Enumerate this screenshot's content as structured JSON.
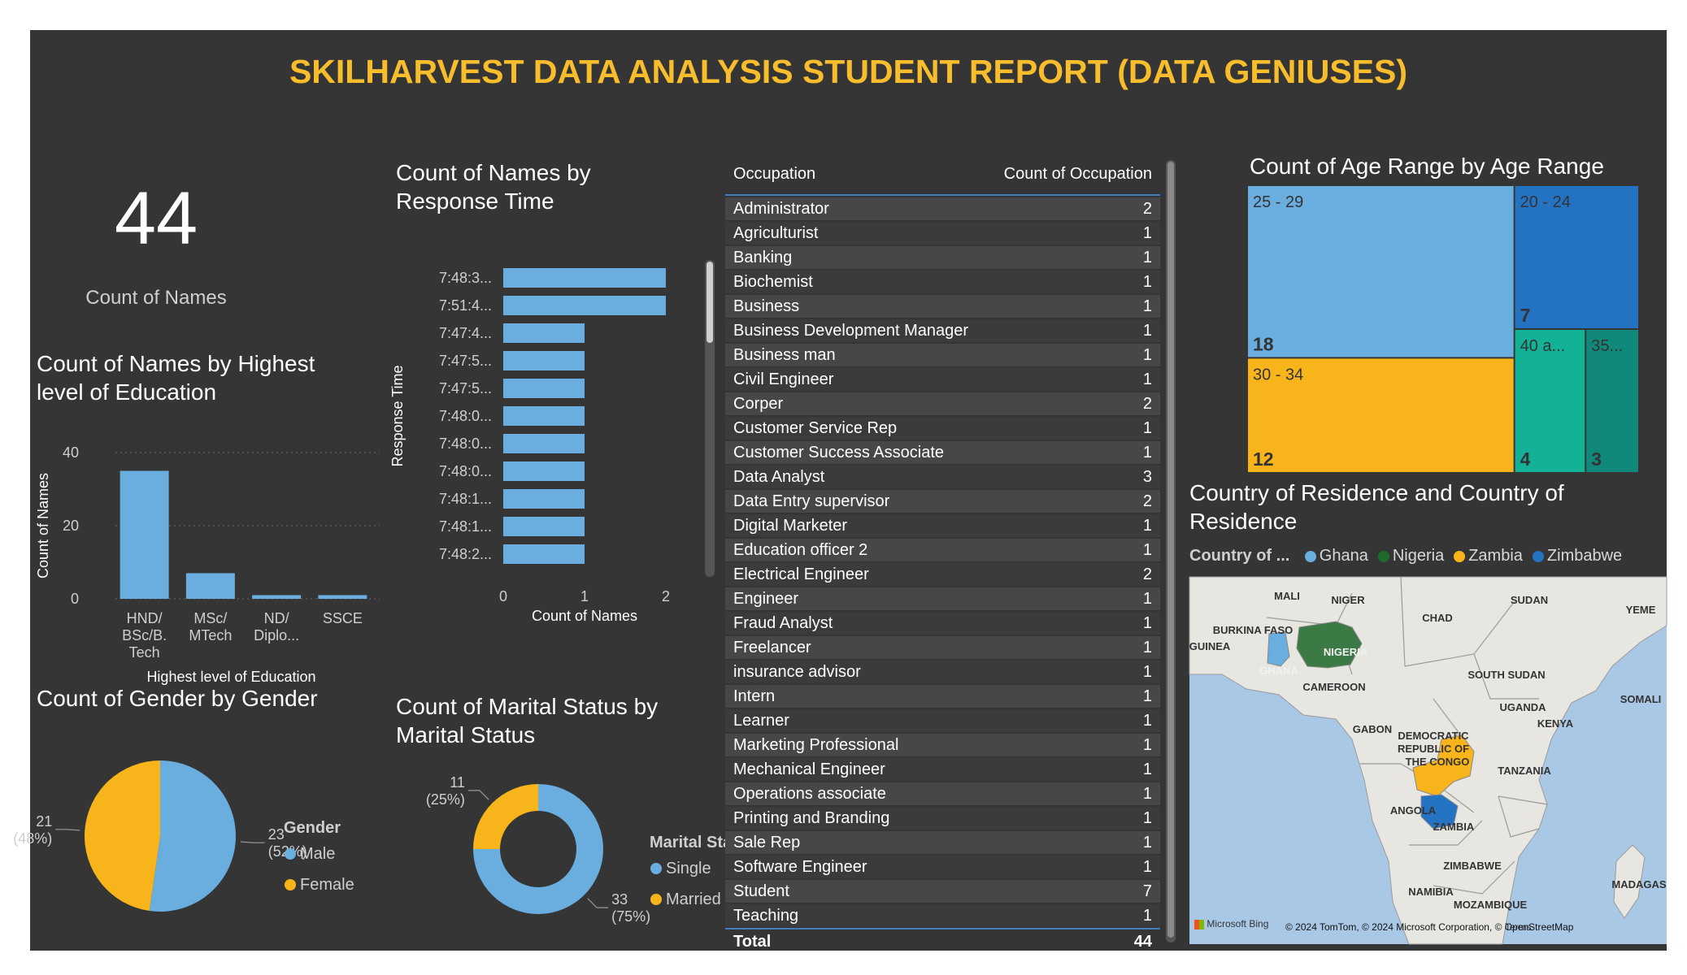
{
  "header": {
    "title": "SKILHARVEST DATA ANALYSIS STUDENT REPORT (DATA GENIUSES)"
  },
  "colors": {
    "background": "#353535",
    "title": "#f8bd2c",
    "blue": "#6aaee0",
    "dark_blue": "#2473c3",
    "yellow": "#f8b41b",
    "teal": "#13b195",
    "dark_teal": "#11897a",
    "nigeria_green": "#3c7a45"
  },
  "card": {
    "value": "44",
    "label": "Count of Names"
  },
  "table": {
    "headers": [
      "Occupation",
      "Count of Occupation"
    ],
    "rows": [
      [
        "Administrator",
        "2"
      ],
      [
        "Agriculturist",
        "1"
      ],
      [
        "Banking",
        "1"
      ],
      [
        "Biochemist",
        "1"
      ],
      [
        "Business",
        "1"
      ],
      [
        "Business Development Manager",
        "1"
      ],
      [
        "Business man",
        "1"
      ],
      [
        "Civil Engineer",
        "1"
      ],
      [
        "Corper",
        "2"
      ],
      [
        "Customer Service Rep",
        "1"
      ],
      [
        "Customer Success Associate",
        "1"
      ],
      [
        "Data Analyst",
        "3"
      ],
      [
        "Data Entry supervisor",
        "2"
      ],
      [
        "Digital Marketer",
        "1"
      ],
      [
        "Education officer 2",
        "1"
      ],
      [
        "Electrical Engineer",
        "2"
      ],
      [
        "Engineer",
        "1"
      ],
      [
        "Fraud Analyst",
        "1"
      ],
      [
        "Freelancer",
        "1"
      ],
      [
        "insurance advisor",
        "1"
      ],
      [
        "Intern",
        "1"
      ],
      [
        "Learner",
        "1"
      ],
      [
        "Marketing Professional",
        "1"
      ],
      [
        "Mechanical Engineer",
        "1"
      ],
      [
        "Operations associate",
        "1"
      ],
      [
        "Printing and Branding",
        "1"
      ],
      [
        "Sale Rep",
        "1"
      ],
      [
        "Software Engineer",
        "1"
      ],
      [
        "Student",
        "7"
      ],
      [
        "Teaching",
        "1"
      ]
    ],
    "total_label": "Total",
    "total_value": "44"
  },
  "map": {
    "title": "Country of Residence and Country of Residence",
    "legend_title": "Country of ...",
    "countries": [
      {
        "name": "Ghana",
        "color": "#6aaee0"
      },
      {
        "name": "Nigeria",
        "color": "#1e6b2c"
      },
      {
        "name": "Zambia",
        "color": "#f8b41b"
      },
      {
        "name": "Zimbabwe",
        "color": "#2473c3"
      }
    ],
    "place_labels": [
      "MALI",
      "NIGER",
      "SUDAN",
      "YEME",
      "CHAD",
      "BURKINA FASO",
      "GUINEA",
      "NIGERIA",
      "GHANA",
      "CAMEROON",
      "SOUTH SUDAN",
      "SOMALI",
      "UGANDA",
      "KENYA",
      "GABON",
      "DEMOCRATIC",
      "REPUBLIC OF",
      "THE CONGO",
      "TANZANIA",
      "ANGOLA",
      "ZAMBIA",
      "ZIMBABWE",
      "MADAGAS",
      "NAMIBIA",
      "MOZAMBIQUE"
    ],
    "attribution": "© 2024 TomTom, © 2024 Microsoft Corporation, © OpenStreetMap",
    "attribution_overlap": "Terms",
    "bing_label": "Microsoft Bing"
  },
  "chart_data": [
    {
      "type": "bar",
      "title": "Count of Names by Highest level of Education",
      "xlabel": "Highest level of Education",
      "ylabel": "Count of Names",
      "categories": [
        "HND/ BSc/B. Tech",
        "MSc/ MTech",
        "ND/ Diplo...",
        "SSCE"
      ],
      "category_lines": [
        [
          "HND/",
          "BSc/B.",
          "Tech"
        ],
        [
          "MSc/",
          "MTech"
        ],
        [
          "ND/",
          "Diplo..."
        ],
        [
          "SSCE"
        ]
      ],
      "values": [
        35,
        7,
        1,
        1
      ],
      "ylim": [
        0,
        40
      ],
      "yticks": [
        0,
        20,
        40
      ],
      "grid": true
    },
    {
      "type": "bar",
      "orientation": "horizontal",
      "title": "Count of Names by Response Time",
      "xlabel": "Count of Names",
      "ylabel": "Response Time",
      "categories": [
        "7:48:3...",
        "7:51:4...",
        "7:47:4...",
        "7:47:5...",
        "7:47:5...",
        "7:48:0...",
        "7:48:0...",
        "7:48:0...",
        "7:48:1...",
        "7:48:1...",
        "7:48:2..."
      ],
      "values": [
        2,
        2,
        1,
        1,
        1,
        1,
        1,
        1,
        1,
        1,
        1
      ],
      "xlim": [
        0,
        2
      ],
      "xticks": [
        0,
        1,
        2
      ]
    },
    {
      "type": "treemap",
      "title": "Count of Age Range by Age Range",
      "items": [
        {
          "label": "25 - 29",
          "value": 18,
          "color": "#6aaee0"
        },
        {
          "label": "30 - 34",
          "value": 12,
          "color": "#f8b41b"
        },
        {
          "label": "20 - 24",
          "value": 7,
          "color": "#2473c3"
        },
        {
          "label": "40 a...",
          "value": 4,
          "color": "#13b195"
        },
        {
          "label": "35...",
          "value": 3,
          "color": "#11897a"
        }
      ]
    },
    {
      "type": "pie",
      "title": "Count of Gender by Gender",
      "legend_title": "Gender",
      "slices": [
        {
          "label": "Male",
          "value": 23,
          "percent": "52%",
          "color": "#6aaee0"
        },
        {
          "label": "Female",
          "value": 21,
          "percent": "48%",
          "color": "#f8b41b"
        }
      ]
    },
    {
      "type": "pie",
      "variant": "donut",
      "title": "Count of Marital Status by Marital Status",
      "legend_title": "Marital Sta...",
      "slices": [
        {
          "label": "Single",
          "value": 33,
          "percent": "75%",
          "color": "#6aaee0"
        },
        {
          "label": "Married",
          "value": 11,
          "percent": "25%",
          "color": "#f8b41b"
        }
      ]
    }
  ]
}
